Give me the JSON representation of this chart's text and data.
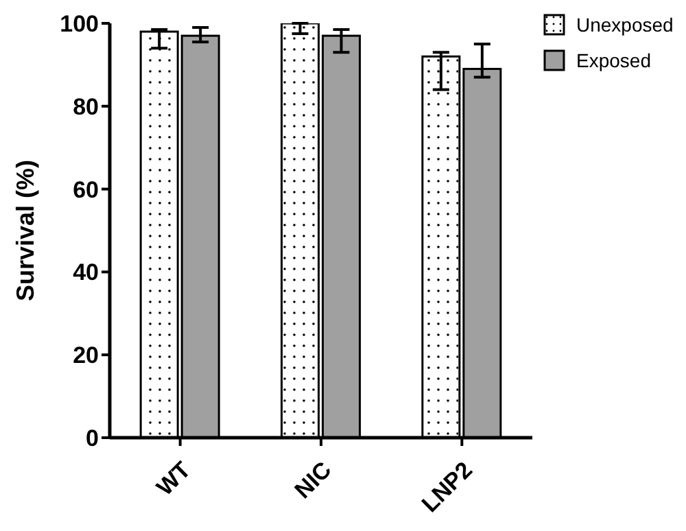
{
  "chart_data": {
    "type": "bar",
    "ylabel": "Survival (%)",
    "categories": [
      "WT",
      "NIC",
      "LNP2"
    ],
    "series": [
      {
        "name": "Unexposed",
        "color": "#ffffff",
        "values": [
          98,
          100,
          92
        ],
        "errors": [
          [
            94,
            98.5
          ],
          [
            97.5,
            100
          ],
          [
            84,
            93
          ]
        ]
      },
      {
        "name": "Exposed",
        "color": "#a0a0a0",
        "values": [
          97,
          97,
          89
        ],
        "errors": [
          [
            95.5,
            99
          ],
          [
            93,
            98.5
          ],
          [
            87,
            95
          ]
        ]
      }
    ],
    "ylim": [
      0,
      100
    ],
    "yticks": [
      0,
      20,
      40,
      60,
      80,
      100
    ],
    "grid": false,
    "legend": "top right"
  }
}
